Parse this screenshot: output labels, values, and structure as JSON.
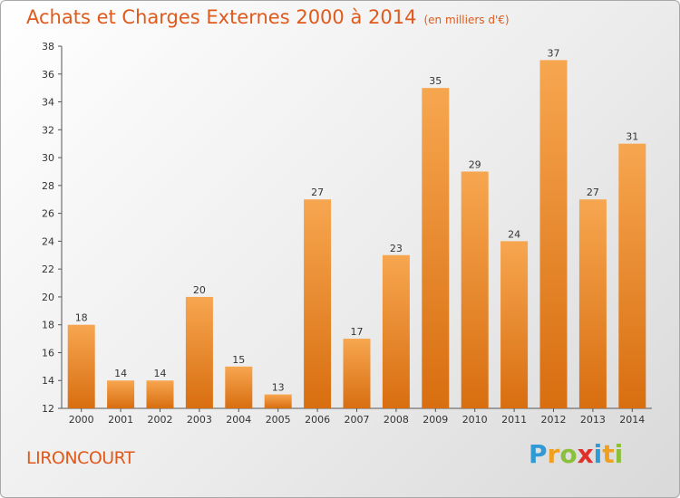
{
  "chart_data": {
    "type": "bar",
    "title": "Achats et Charges Externes 2000 à 2014",
    "subtitle": "(en milliers d'€)",
    "categories": [
      "2000",
      "2001",
      "2002",
      "2003",
      "2004",
      "2005",
      "2006",
      "2007",
      "2008",
      "2009",
      "2010",
      "2011",
      "2012",
      "2013",
      "2014"
    ],
    "values": [
      18,
      14,
      14,
      20,
      15,
      13,
      27,
      17,
      23,
      35,
      29,
      24,
      37,
      27,
      31
    ],
    "ylim": [
      12,
      38
    ],
    "yticks": [
      12,
      14,
      16,
      18,
      20,
      22,
      24,
      26,
      28,
      30,
      32,
      34,
      36,
      38
    ],
    "grid": false,
    "legend": "none",
    "bar_color": "#f08a2a"
  },
  "commune": "LIRONCOURT",
  "logo": {
    "letters": [
      "P",
      "r",
      "o",
      "x",
      "i",
      "t",
      "i"
    ],
    "colors": [
      "#2f9ad6",
      "#f0a020",
      "#8cc03c",
      "#e0302c",
      "#2f9ad6",
      "#f0a020",
      "#8cc03c"
    ]
  }
}
